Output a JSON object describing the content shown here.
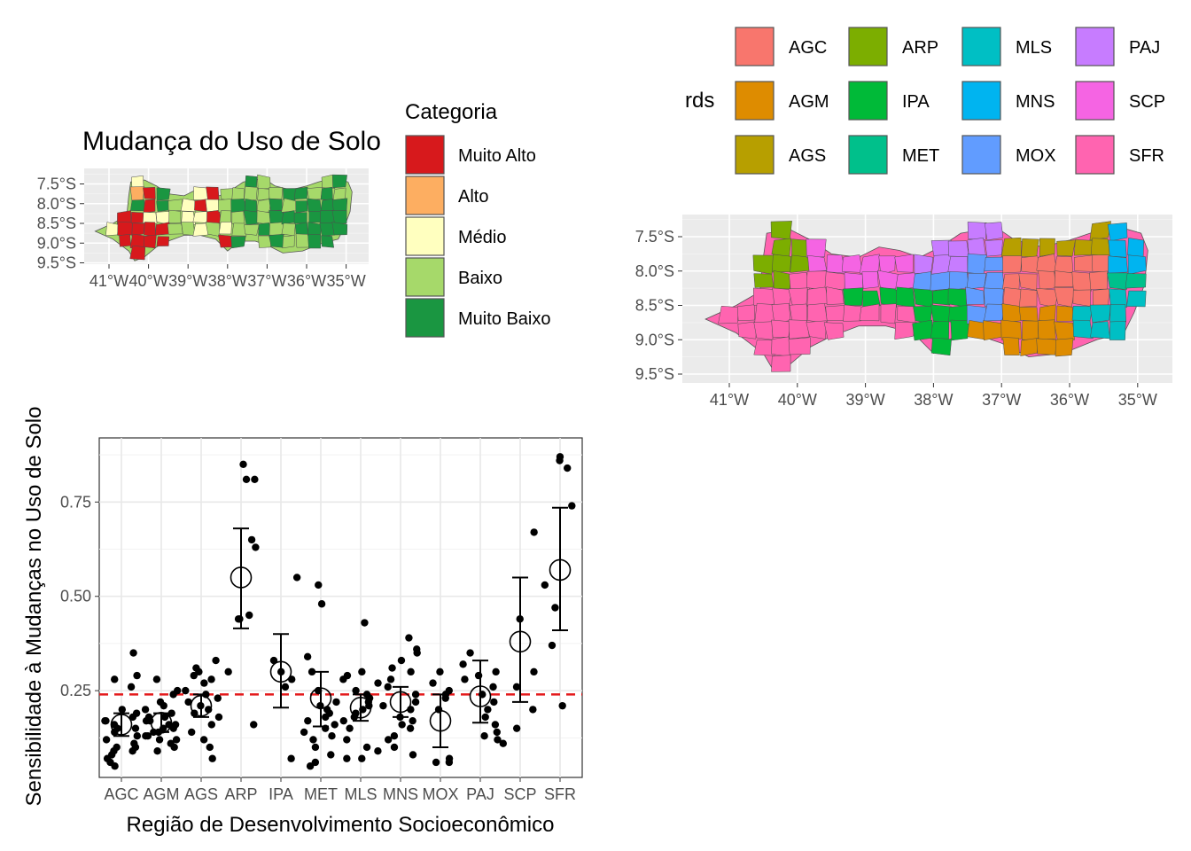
{
  "colors": {
    "panel_bg": "#ebebeb",
    "grid": "#ffffff",
    "reference_line": "#e41a1c",
    "border": "#4d4d4d"
  },
  "map1": {
    "title": "Mudança do Uso de Solo",
    "legend_title": "Categoria",
    "categories": [
      {
        "label": "Muito Alto",
        "color": "#d7191c"
      },
      {
        "label": "Alto",
        "color": "#fdae61"
      },
      {
        "label": "Médio",
        "color": "#ffffbf"
      },
      {
        "label": "Baixo",
        "color": "#a6d96a"
      },
      {
        "label": "Muito Baixo",
        "color": "#1a9641"
      }
    ],
    "lat_ticks": [
      "7.5°S",
      "8.0°S",
      "8.5°S",
      "9.0°S",
      "9.5°S"
    ],
    "lon_ticks": [
      "41°W",
      "40°W",
      "39°W",
      "38°W",
      "37°W",
      "36°W",
      "35°W"
    ]
  },
  "map2": {
    "legend_title": "rds",
    "regions": [
      {
        "code": "AGC",
        "color": "#f8766d"
      },
      {
        "code": "AGM",
        "color": "#de8c00"
      },
      {
        "code": "AGS",
        "color": "#b79f00"
      },
      {
        "code": "ARP",
        "color": "#7cae00"
      },
      {
        "code": "IPA",
        "color": "#00ba38"
      },
      {
        "code": "MET",
        "color": "#00c08b"
      },
      {
        "code": "MLS",
        "color": "#00bfc4"
      },
      {
        "code": "MNS",
        "color": "#00b4f0"
      },
      {
        "code": "MOX",
        "color": "#619cff"
      },
      {
        "code": "PAJ",
        "color": "#c77cff"
      },
      {
        "code": "SCP",
        "color": "#f564e3"
      },
      {
        "code": "SFR",
        "color": "#ff64b0"
      }
    ],
    "lat_ticks": [
      "7.5°S",
      "8.0°S",
      "8.5°S",
      "9.0°S",
      "9.5°S"
    ],
    "lon_ticks": [
      "41°W",
      "40°W",
      "39°W",
      "38°W",
      "37°W",
      "36°W",
      "35°W"
    ]
  },
  "chart_data": {
    "type": "scatter",
    "title": "",
    "xlabel": "Região de Desenvolvimento Socioeconômico",
    "ylabel": "Sensibilidade à Mudanças no Uso de Solo",
    "categories": [
      "AGC",
      "AGM",
      "AGS",
      "ARP",
      "IPA",
      "MET",
      "MLS",
      "MNS",
      "MOX",
      "PAJ",
      "SCP",
      "SFR"
    ],
    "y_ticks": [
      0.25,
      0.5,
      0.75
    ],
    "y_tick_labels": [
      "0.25",
      "0.50",
      "0.75"
    ],
    "ylim": [
      0.02,
      0.92
    ],
    "reference_line": 0.24,
    "summary": [
      {
        "category": "AGC",
        "mean": 0.16,
        "lower": 0.13,
        "upper": 0.19
      },
      {
        "category": "AGM",
        "mean": 0.165,
        "lower": 0.14,
        "upper": 0.19
      },
      {
        "category": "AGS",
        "mean": 0.21,
        "lower": 0.18,
        "upper": 0.24
      },
      {
        "category": "ARP",
        "mean": 0.55,
        "lower": 0.415,
        "upper": 0.68
      },
      {
        "category": "IPA",
        "mean": 0.3,
        "lower": 0.205,
        "upper": 0.4
      },
      {
        "category": "MET",
        "mean": 0.23,
        "lower": 0.155,
        "upper": 0.3
      },
      {
        "category": "MLS",
        "mean": 0.205,
        "lower": 0.17,
        "upper": 0.24
      },
      {
        "category": "MNS",
        "mean": 0.22,
        "lower": 0.18,
        "upper": 0.26
      },
      {
        "category": "MOX",
        "mean": 0.17,
        "lower": 0.1,
        "upper": 0.24
      },
      {
        "category": "PAJ",
        "mean": 0.235,
        "lower": 0.165,
        "upper": 0.33
      },
      {
        "category": "SCP",
        "mean": 0.38,
        "lower": 0.22,
        "upper": 0.55
      },
      {
        "category": "SFR",
        "mean": 0.57,
        "lower": 0.41,
        "upper": 0.735
      }
    ],
    "points": {
      "AGC": [
        0.35,
        0.26,
        0.29,
        0.28,
        0.19,
        0.18,
        0.2,
        0.16,
        0.17,
        0.15,
        0.14,
        0.12,
        0.11,
        0.1,
        0.09,
        0.09,
        0.1,
        0.07,
        0.06,
        0.05,
        0.13,
        0.15,
        0.17,
        0.08
      ],
      "AGM": [
        0.24,
        0.22,
        0.28,
        0.25,
        0.2,
        0.19,
        0.18,
        0.17,
        0.16,
        0.15,
        0.14,
        0.13,
        0.12,
        0.11,
        0.1,
        0.09,
        0.13,
        0.15,
        0.17,
        0.21,
        0.18,
        0.12,
        0.16,
        0.14
      ],
      "AGS": [
        0.31,
        0.33,
        0.3,
        0.28,
        0.27,
        0.25,
        0.24,
        0.22,
        0.2,
        0.19,
        0.18,
        0.16,
        0.14,
        0.12,
        0.1,
        0.07,
        0.29,
        0.23,
        0.21
      ],
      "ARP": [
        0.85,
        0.81,
        0.81,
        0.65,
        0.63,
        0.45,
        0.44,
        0.44,
        0.3,
        0.16
      ],
      "IPA": [
        0.55,
        0.33,
        0.3,
        0.28,
        0.26,
        0.07
      ],
      "MET": [
        0.53,
        0.48,
        0.34,
        0.3,
        0.25,
        0.22,
        0.2,
        0.19,
        0.18,
        0.17,
        0.16,
        0.15,
        0.14,
        0.12,
        0.1,
        0.08,
        0.06,
        0.05,
        0.13,
        0.21
      ],
      "MLS": [
        0.43,
        0.3,
        0.29,
        0.27,
        0.25,
        0.24,
        0.23,
        0.22,
        0.2,
        0.18,
        0.17,
        0.15,
        0.12,
        0.1,
        0.09,
        0.07,
        0.07,
        0.19,
        0.28,
        0.21
      ],
      "MNS": [
        0.39,
        0.36,
        0.35,
        0.33,
        0.3,
        0.28,
        0.26,
        0.24,
        0.22,
        0.21,
        0.2,
        0.18,
        0.16,
        0.15,
        0.13,
        0.12,
        0.1,
        0.08,
        0.31,
        0.17
      ],
      "MOX": [
        0.3,
        0.27,
        0.25,
        0.24,
        0.23,
        0.2,
        0.07,
        0.06,
        0.06
      ],
      "PAJ": [
        0.35,
        0.32,
        0.3,
        0.29,
        0.26,
        0.24,
        0.22,
        0.2,
        0.18,
        0.16,
        0.14,
        0.13,
        0.12,
        0.28
      ],
      "SCP": [
        0.67,
        0.44,
        0.26,
        0.3,
        0.2,
        0.15,
        0.11
      ],
      "SFR": [
        0.87,
        0.86,
        0.84,
        0.74,
        0.53,
        0.47,
        0.37,
        0.21
      ]
    }
  }
}
